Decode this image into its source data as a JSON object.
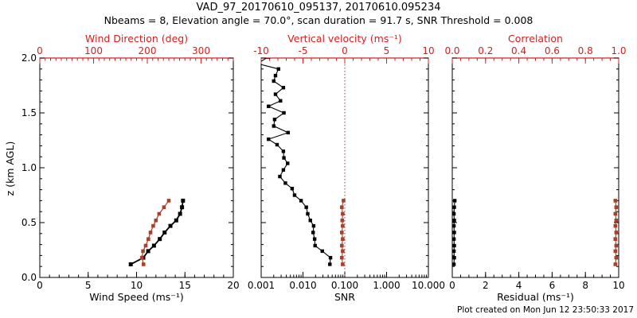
{
  "header": {
    "title": "VAD_97_20170610_095137, 20170610.095234",
    "subtitle": "Nbeams = 8, Elevation angle = 70.0°, scan duration = 91.7 s, SNR Threshold = 0.008"
  },
  "footer": {
    "created": "Plot created on Mon Jun 12 23:50:33 2017"
  },
  "colors": {
    "black": "#000000",
    "axis_red": "#d42020",
    "marker_red": "#a8402c",
    "background": "#ffffff"
  },
  "chart_data": [
    {
      "id": "wind",
      "type": "line",
      "y_axis": {
        "label": "z (km AGL)",
        "min": 0,
        "max": 2,
        "ticks": [
          0,
          0.5,
          1,
          1.5,
          2
        ],
        "tick_labels": [
          "0.0",
          "0.5",
          "1.0",
          "1.5",
          "2.0"
        ],
        "minor": 0.1
      },
      "bottom_axis": {
        "label": "Wind Speed (ms⁻¹)",
        "min": 0,
        "max": 20,
        "ticks": [
          0,
          5,
          10,
          15,
          20
        ],
        "minor": 1,
        "color": "black"
      },
      "top_axis": {
        "label": "Wind Direction (deg)",
        "min": 0,
        "max": 360,
        "ticks": [
          0,
          100,
          200,
          300
        ],
        "minor": 10,
        "color": "red"
      },
      "series": [
        {
          "name": "wind_speed",
          "axis": "bottom",
          "color": "black",
          "z": [
            0.12,
            0.18,
            0.24,
            0.29,
            0.35,
            0.41,
            0.47,
            0.52,
            0.58,
            0.64,
            0.7
          ],
          "values": [
            9.4,
            10.7,
            11.2,
            11.8,
            12.4,
            12.9,
            13.5,
            14.1,
            14.5,
            14.7,
            14.8
          ]
        },
        {
          "name": "wind_direction",
          "axis": "top",
          "color": "red",
          "z": [
            0.12,
            0.18,
            0.24,
            0.29,
            0.35,
            0.41,
            0.47,
            0.52,
            0.58,
            0.64,
            0.7
          ],
          "values": [
            193,
            190,
            192,
            197,
            202,
            206,
            211,
            216,
            222,
            231,
            240
          ]
        }
      ]
    },
    {
      "id": "snr",
      "type": "line",
      "y_axis": {
        "label": "z (km AGL)",
        "min": 0,
        "max": 2,
        "ticks": [
          0,
          0.5,
          1,
          1.5,
          2
        ],
        "tick_labels": [
          "",
          "",
          "",
          "",
          ""
        ],
        "minor": 0.1
      },
      "bottom_axis": {
        "label": "SNR",
        "scale": "log",
        "min": 0.001,
        "max": 10,
        "ticks": [
          0.001,
          0.01,
          0.1,
          1,
          10
        ],
        "tick_labels": [
          "0.001",
          "0.010",
          "0.100",
          "1.000",
          "10.000"
        ],
        "color": "black"
      },
      "top_axis": {
        "label": "Vertical velocity (ms⁻¹)",
        "min": -10,
        "max": 10,
        "ticks": [
          -10,
          -5,
          0,
          5,
          10
        ],
        "minor": 1,
        "color": "red"
      },
      "refline": {
        "axis": "top",
        "value": 0,
        "style": "dotted",
        "color": "red"
      },
      "series": [
        {
          "name": "snr",
          "axis": "bottom",
          "color": "black",
          "z": [
            0.12,
            0.18,
            0.24,
            0.29,
            0.35,
            0.41,
            0.47,
            0.52,
            0.58,
            0.64,
            0.7,
            0.75,
            0.81,
            0.86,
            0.92,
            0.98,
            1.04,
            1.09,
            1.15,
            1.21,
            1.26,
            1.32,
            1.38,
            1.44,
            1.5,
            1.56,
            1.61,
            1.67,
            1.73,
            1.79,
            1.84,
            1.9,
            1.95,
            2.01
          ],
          "values": [
            0.044,
            0.0455,
            0.029,
            0.0195,
            0.019,
            0.0175,
            0.018,
            0.015,
            0.013,
            0.012,
            0.009,
            0.0063,
            0.0055,
            0.0038,
            0.0028,
            0.0034,
            0.0043,
            0.0035,
            0.0034,
            0.0024,
            0.0015,
            0.0044,
            0.002,
            0.0021,
            0.0035,
            0.0015,
            0.0029,
            0.0022,
            0.0034,
            0.002,
            0.0022,
            0.0026,
            0.0008,
            0.0015
          ]
        },
        {
          "name": "vertical_velocity",
          "axis": "top",
          "color": "red",
          "z": [
            0.12,
            0.18,
            0.24,
            0.29,
            0.35,
            0.41,
            0.47,
            0.52,
            0.58,
            0.64,
            0.7
          ],
          "values": [
            -0.25,
            -0.35,
            -0.25,
            -0.35,
            -0.25,
            -0.35,
            -0.25,
            -0.3,
            -0.25,
            -0.35,
            -0.15
          ]
        }
      ]
    },
    {
      "id": "residual",
      "type": "line",
      "y_axis": {
        "label": "z (km AGL)",
        "min": 0,
        "max": 2,
        "ticks": [
          0,
          0.5,
          1,
          1.5,
          2
        ],
        "tick_labels": [
          "",
          "",
          "",
          "",
          ""
        ],
        "minor": 0.1
      },
      "bottom_axis": {
        "label": "Residual (ms⁻¹)",
        "min": 0,
        "max": 10,
        "ticks": [
          0,
          2,
          4,
          6,
          8,
          10
        ],
        "minor": 0.5,
        "color": "black"
      },
      "top_axis": {
        "label": "Correlation",
        "min": 0,
        "max": 1,
        "ticks": [
          0,
          0.2,
          0.4,
          0.6,
          0.8,
          1
        ],
        "tick_labels": [
          "0.0",
          "0.2",
          "0.4",
          "0.6",
          "0.8",
          "1.0"
        ],
        "minor": 0.05,
        "color": "red"
      },
      "series": [
        {
          "name": "residual",
          "axis": "bottom",
          "color": "black",
          "z": [
            0.12,
            0.18,
            0.24,
            0.29,
            0.35,
            0.41,
            0.47,
            0.52,
            0.58,
            0.64,
            0.7
          ],
          "values": [
            0.1,
            0.12,
            0.1,
            0.12,
            0.1,
            0.12,
            0.1,
            0.12,
            0.1,
            0.12,
            0.15
          ]
        },
        {
          "name": "correlation",
          "axis": "top",
          "color": "red",
          "z": [
            0.12,
            0.18,
            0.24,
            0.29,
            0.35,
            0.41,
            0.47,
            0.52,
            0.58,
            0.64,
            0.7
          ],
          "values": [
            0.98,
            0.985,
            0.98,
            0.985,
            0.98,
            0.985,
            0.98,
            0.985,
            0.98,
            0.985,
            0.98
          ]
        }
      ]
    }
  ]
}
